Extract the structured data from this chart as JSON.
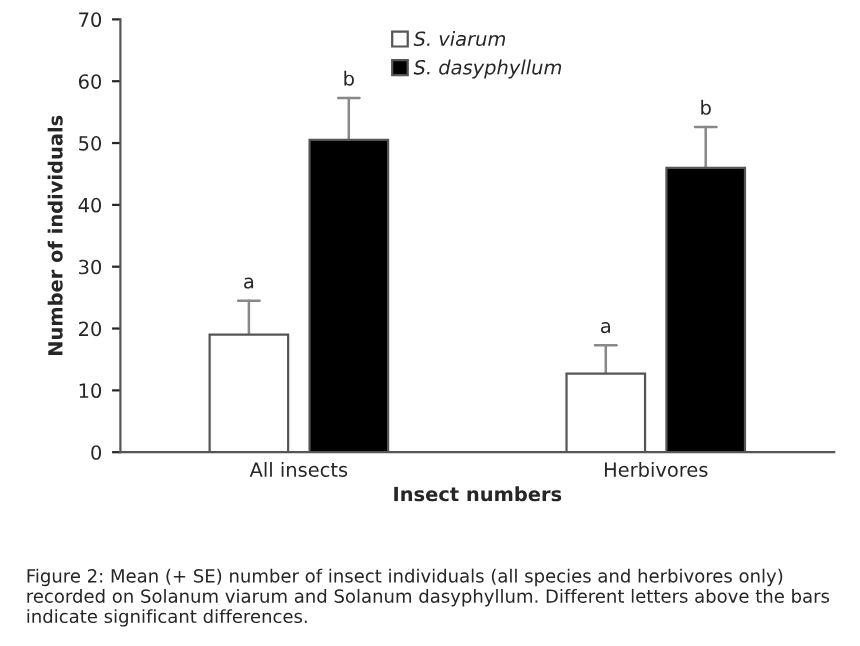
{
  "chart_data": {
    "type": "bar",
    "xlabel": "Insect numbers",
    "ylabel": "Number of individuals",
    "categories": [
      "All insects",
      "Herbivores"
    ],
    "series": [
      {
        "name": "S. viarum",
        "color": "#ffffff",
        "values": [
          19,
          12.7
        ],
        "errors": [
          [
            19,
            24.5
          ],
          [
            12.7,
            17.3
          ]
        ]
      },
      {
        "name": "S. dasyphyllum",
        "color": "#000000",
        "values": [
          50.5,
          46
        ],
        "errors": [
          [
            50.5,
            57.3
          ],
          [
            46,
            52.6
          ]
        ]
      }
    ],
    "ylim": [
      0,
      70
    ],
    "yticks": [
      0,
      10,
      20,
      30,
      40,
      50,
      60,
      70
    ],
    "grid": false,
    "legend": "top",
    "annotations": [
      "a",
      "b",
      "a",
      "b",
      "Figure 2: Mean (+ SE) number of insect individuals (all species and herbivores only) recorded on Solanum viarum and Solanum dasyphyllum. Different letters above the bars indicate significant differences."
    ]
  }
}
